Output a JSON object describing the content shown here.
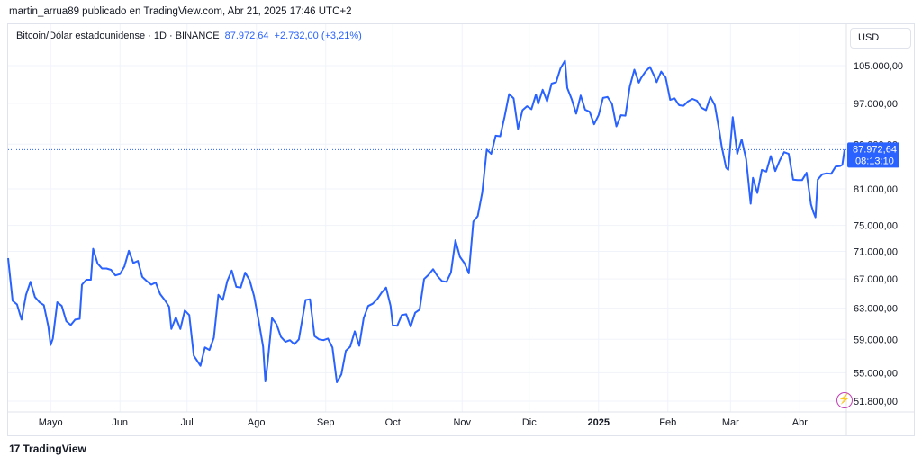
{
  "header": {
    "publisher": "martin_arrua89 publicado en TradingView.com, Abr 21, 2025 17:46 UTC+2"
  },
  "legend": {
    "symbol": "Bitcoin/Dólar estadounidense · 1D · BINANCE",
    "last": "87.972,64",
    "change": "+2.732,00 (+3,21%)"
  },
  "currency_button": "USD",
  "price_label": {
    "value": "87.972,64",
    "countdown": "08:13:10"
  },
  "footer": {
    "brand": "TradingView",
    "logo": "17"
  },
  "colors": {
    "line": "#2962ff",
    "grid": "#f0f3fa",
    "axis_text": "#131722",
    "price_tag": "#2962ff"
  },
  "icons": {
    "footer_logo": "tradingview-logo-icon",
    "alert": "lightning-alert-icon"
  },
  "chart_data": {
    "type": "line",
    "title": "Bitcoin/Dólar estadounidense · 1D · BINANCE",
    "scale": "log",
    "grid": true,
    "y_ticks": [
      105000,
      97000,
      89000,
      81000,
      75000,
      71000,
      67000,
      63000,
      59000,
      55000,
      51800
    ],
    "y_tick_labels": [
      "105.000,00",
      "97.000,00",
      "89.000,00",
      "81.000,00",
      "75.000,00",
      "71.000,00",
      "67.000,00",
      "63.000,00",
      "59.000,00",
      "55.000,00",
      "51.800,00"
    ],
    "x_ticks": [
      {
        "date": "2024-05-01",
        "label": "Mayo"
      },
      {
        "date": "2024-06-01",
        "label": "Jun"
      },
      {
        "date": "2024-07-01",
        "label": "Jul"
      },
      {
        "date": "2024-08-01",
        "label": "Ago"
      },
      {
        "date": "2024-09-01",
        "label": "Sep"
      },
      {
        "date": "2024-10-01",
        "label": "Oct"
      },
      {
        "date": "2024-11-01",
        "label": "Nov"
      },
      {
        "date": "2024-12-01",
        "label": "Dic"
      },
      {
        "date": "2025-01-01",
        "label": "2025"
      },
      {
        "date": "2025-02-01",
        "label": "Feb"
      },
      {
        "date": "2025-03-01",
        "label": "Mar"
      },
      {
        "date": "2025-04-01",
        "label": "Abr"
      }
    ],
    "series": [
      {
        "points": [
          [
            "2024-04-12",
            70000
          ],
          [
            "2024-04-14",
            64000
          ],
          [
            "2024-04-16",
            63500
          ],
          [
            "2024-04-18",
            61500
          ],
          [
            "2024-04-20",
            64800
          ],
          [
            "2024-04-22",
            66600
          ],
          [
            "2024-04-24",
            64500
          ],
          [
            "2024-04-26",
            63800
          ],
          [
            "2024-04-28",
            63400
          ],
          [
            "2024-04-30",
            60600
          ],
          [
            "2024-05-01",
            58300
          ],
          [
            "2024-05-02",
            59100
          ],
          [
            "2024-05-04",
            63800
          ],
          [
            "2024-05-06",
            63300
          ],
          [
            "2024-05-08",
            61300
          ],
          [
            "2024-05-10",
            60800
          ],
          [
            "2024-05-12",
            61500
          ],
          [
            "2024-05-14",
            61600
          ],
          [
            "2024-05-15",
            66200
          ],
          [
            "2024-05-17",
            66900
          ],
          [
            "2024-05-19",
            66900
          ],
          [
            "2024-05-20",
            71400
          ],
          [
            "2024-05-22",
            69200
          ],
          [
            "2024-05-24",
            68500
          ],
          [
            "2024-05-26",
            68500
          ],
          [
            "2024-05-28",
            68300
          ],
          [
            "2024-05-30",
            67500
          ],
          [
            "2024-06-01",
            67700
          ],
          [
            "2024-06-03",
            68800
          ],
          [
            "2024-06-05",
            71100
          ],
          [
            "2024-06-07",
            69300
          ],
          [
            "2024-06-09",
            69600
          ],
          [
            "2024-06-11",
            67300
          ],
          [
            "2024-06-13",
            66700
          ],
          [
            "2024-06-15",
            66200
          ],
          [
            "2024-06-17",
            66500
          ],
          [
            "2024-06-19",
            64900
          ],
          [
            "2024-06-21",
            64100
          ],
          [
            "2024-06-23",
            63200
          ],
          [
            "2024-06-24",
            60300
          ],
          [
            "2024-06-26",
            61800
          ],
          [
            "2024-06-28",
            60300
          ],
          [
            "2024-06-30",
            62700
          ],
          [
            "2024-07-02",
            62100
          ],
          [
            "2024-07-04",
            57000
          ],
          [
            "2024-07-05",
            56600
          ],
          [
            "2024-07-07",
            55800
          ],
          [
            "2024-07-09",
            58000
          ],
          [
            "2024-07-11",
            57700
          ],
          [
            "2024-07-13",
            59200
          ],
          [
            "2024-07-15",
            64800
          ],
          [
            "2024-07-17",
            64100
          ],
          [
            "2024-07-19",
            66700
          ],
          [
            "2024-07-21",
            68200
          ],
          [
            "2024-07-23",
            65900
          ],
          [
            "2024-07-25",
            65800
          ],
          [
            "2024-07-27",
            67900
          ],
          [
            "2024-07-29",
            66800
          ],
          [
            "2024-07-31",
            64600
          ],
          [
            "2024-08-02",
            61400
          ],
          [
            "2024-08-04",
            58100
          ],
          [
            "2024-08-05",
            54000
          ],
          [
            "2024-08-06",
            56000
          ],
          [
            "2024-08-08",
            61700
          ],
          [
            "2024-08-10",
            60900
          ],
          [
            "2024-08-12",
            59300
          ],
          [
            "2024-08-14",
            58700
          ],
          [
            "2024-08-16",
            58900
          ],
          [
            "2024-08-18",
            58400
          ],
          [
            "2024-08-20",
            59000
          ],
          [
            "2024-08-23",
            64100
          ],
          [
            "2024-08-25",
            64200
          ],
          [
            "2024-08-27",
            59400
          ],
          [
            "2024-08-29",
            59000
          ],
          [
            "2024-08-31",
            58900
          ],
          [
            "2024-09-02",
            59100
          ],
          [
            "2024-09-04",
            58000
          ],
          [
            "2024-09-06",
            53900
          ],
          [
            "2024-09-08",
            54800
          ],
          [
            "2024-09-10",
            57600
          ],
          [
            "2024-09-12",
            58100
          ],
          [
            "2024-09-14",
            60000
          ],
          [
            "2024-09-16",
            58200
          ],
          [
            "2024-09-18",
            61700
          ],
          [
            "2024-09-20",
            63300
          ],
          [
            "2024-09-22",
            63600
          ],
          [
            "2024-09-24",
            64200
          ],
          [
            "2024-09-26",
            65100
          ],
          [
            "2024-09-28",
            65800
          ],
          [
            "2024-09-30",
            63300
          ],
          [
            "2024-10-01",
            60800
          ],
          [
            "2024-10-03",
            60700
          ],
          [
            "2024-10-05",
            62100
          ],
          [
            "2024-10-07",
            62200
          ],
          [
            "2024-10-09",
            60600
          ],
          [
            "2024-10-11",
            62400
          ],
          [
            "2024-10-13",
            62800
          ],
          [
            "2024-10-15",
            67000
          ],
          [
            "2024-10-17",
            67600
          ],
          [
            "2024-10-19",
            68400
          ],
          [
            "2024-10-21",
            67400
          ],
          [
            "2024-10-23",
            66700
          ],
          [
            "2024-10-25",
            66600
          ],
          [
            "2024-10-27",
            67900
          ],
          [
            "2024-10-29",
            72700
          ],
          [
            "2024-10-31",
            70200
          ],
          [
            "2024-11-02",
            69300
          ],
          [
            "2024-11-04",
            67800
          ],
          [
            "2024-11-06",
            75600
          ],
          [
            "2024-11-08",
            76500
          ],
          [
            "2024-11-10",
            80400
          ],
          [
            "2024-11-12",
            88000
          ],
          [
            "2024-11-14",
            87200
          ],
          [
            "2024-11-16",
            90600
          ],
          [
            "2024-11-18",
            90500
          ],
          [
            "2024-11-20",
            94300
          ],
          [
            "2024-11-22",
            98900
          ],
          [
            "2024-11-24",
            98000
          ],
          [
            "2024-11-26",
            91900
          ],
          [
            "2024-11-28",
            95600
          ],
          [
            "2024-11-30",
            96400
          ],
          [
            "2024-12-02",
            95800
          ],
          [
            "2024-12-04",
            98800
          ],
          [
            "2024-12-05",
            96900
          ],
          [
            "2024-12-07",
            99800
          ],
          [
            "2024-12-09",
            97400
          ],
          [
            "2024-12-11",
            101100
          ],
          [
            "2024-12-13",
            101400
          ],
          [
            "2024-12-15",
            104400
          ],
          [
            "2024-12-17",
            106100
          ],
          [
            "2024-12-18",
            100200
          ],
          [
            "2024-12-20",
            97800
          ],
          [
            "2024-12-22",
            94900
          ],
          [
            "2024-12-24",
            98600
          ],
          [
            "2024-12-26",
            95700
          ],
          [
            "2024-12-28",
            95300
          ],
          [
            "2024-12-30",
            92800
          ],
          [
            "2025-01-01",
            94600
          ],
          [
            "2025-01-03",
            98100
          ],
          [
            "2025-01-05",
            98300
          ],
          [
            "2025-01-07",
            96900
          ],
          [
            "2025-01-09",
            92400
          ],
          [
            "2025-01-11",
            94600
          ],
          [
            "2025-01-13",
            94500
          ],
          [
            "2025-01-15",
            100500
          ],
          [
            "2025-01-17",
            104100
          ],
          [
            "2025-01-19",
            101300
          ],
          [
            "2025-01-20",
            102300
          ],
          [
            "2025-01-22",
            103700
          ],
          [
            "2025-01-24",
            104700
          ],
          [
            "2025-01-26",
            102600
          ],
          [
            "2025-01-27",
            101400
          ],
          [
            "2025-01-29",
            103700
          ],
          [
            "2025-01-31",
            102400
          ],
          [
            "2025-02-02",
            97700
          ],
          [
            "2025-02-04",
            98000
          ],
          [
            "2025-02-06",
            96600
          ],
          [
            "2025-02-08",
            96500
          ],
          [
            "2025-02-10",
            97400
          ],
          [
            "2025-02-12",
            97900
          ],
          [
            "2025-02-14",
            97500
          ],
          [
            "2025-02-16",
            96100
          ],
          [
            "2025-02-18",
            95600
          ],
          [
            "2025-02-20",
            98300
          ],
          [
            "2025-02-22",
            96600
          ],
          [
            "2025-02-24",
            91500
          ],
          [
            "2025-02-25",
            88700
          ],
          [
            "2025-02-27",
            84700
          ],
          [
            "2025-02-28",
            84300
          ],
          [
            "2025-03-02",
            94200
          ],
          [
            "2025-03-04",
            87200
          ],
          [
            "2025-03-06",
            89900
          ],
          [
            "2025-03-08",
            86200
          ],
          [
            "2025-03-10",
            78500
          ],
          [
            "2025-03-11",
            82900
          ],
          [
            "2025-03-13",
            80300
          ],
          [
            "2025-03-15",
            84300
          ],
          [
            "2025-03-17",
            84000
          ],
          [
            "2025-03-19",
            86800
          ],
          [
            "2025-03-21",
            84100
          ],
          [
            "2025-03-23",
            86000
          ],
          [
            "2025-03-25",
            87500
          ],
          [
            "2025-03-27",
            87200
          ],
          [
            "2025-03-29",
            82600
          ],
          [
            "2025-03-31",
            82500
          ],
          [
            "2025-04-02",
            82500
          ],
          [
            "2025-04-04",
            83800
          ],
          [
            "2025-04-06",
            78400
          ],
          [
            "2025-04-07",
            77200
          ],
          [
            "2025-04-08",
            76300
          ],
          [
            "2025-04-09",
            82600
          ],
          [
            "2025-04-11",
            83500
          ],
          [
            "2025-04-13",
            83700
          ],
          [
            "2025-04-15",
            83600
          ],
          [
            "2025-04-17",
            84900
          ],
          [
            "2025-04-19",
            85000
          ],
          [
            "2025-04-20",
            85200
          ],
          [
            "2025-04-21",
            87972.64
          ]
        ]
      }
    ],
    "last_value": 87972.64
  }
}
